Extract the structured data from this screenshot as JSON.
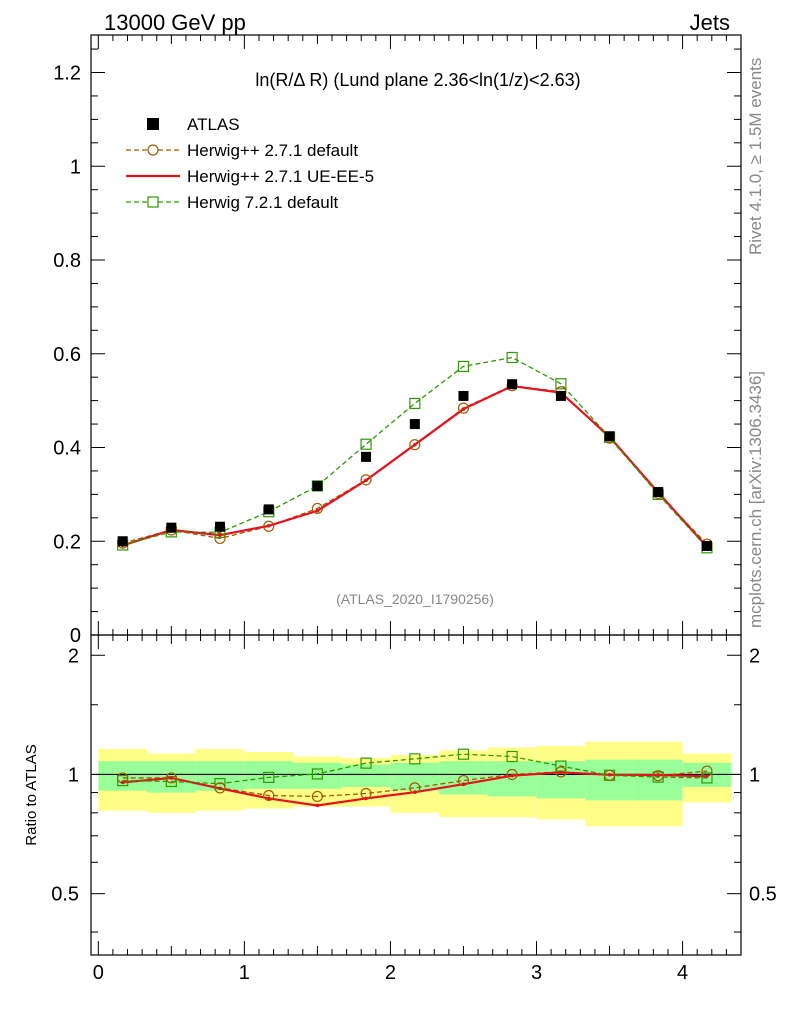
{
  "header": {
    "left": "13000 GeV pp",
    "right": "Jets"
  },
  "side": {
    "upper": "Rivet 4.1.0, ≥ 1.5M events",
    "lower": "mcplots.cern.ch [arXiv:1306.3436]"
  },
  "colors": {
    "atlas": "#000000",
    "herwig_def": "#a35a00",
    "herwig_ue": "#e8101e",
    "herwig72": "#2e9a00",
    "band_outer": "#ffff88",
    "band_inner": "#99ff99"
  },
  "chart_data": [
    {
      "type": "scatter",
      "title": "ln(R/Δ R) (Lund plane 2.36<ln(1/z)<2.63)",
      "watermark": "(ATLAS_2020_I1790256)",
      "xlabel": "",
      "ylabel": "",
      "xlim": [
        -0.05,
        4.4
      ],
      "ylim": [
        0,
        1.28
      ],
      "yticks": [
        0,
        0.2,
        0.4,
        0.6,
        0.8,
        1,
        1.2
      ],
      "ytick_labels": [
        "0",
        "0.2",
        "0.4",
        "0.6",
        "0.8",
        "1",
        "1.2"
      ],
      "x": [
        0.167,
        0.5,
        0.833,
        1.167,
        1.5,
        1.833,
        2.167,
        2.5,
        2.833,
        3.167,
        3.5,
        3.833,
        4.167
      ],
      "series": [
        {
          "name": "ATLAS",
          "marker": "square",
          "values": [
            0.2,
            0.229,
            0.231,
            0.268,
            0.318,
            0.38,
            0.45,
            0.51,
            0.535,
            0.51,
            0.424,
            0.305,
            0.19
          ]
        },
        {
          "name": "Herwig++ 2.7.1 default",
          "marker": "circle",
          "dash": true,
          "values": [
            0.196,
            0.224,
            0.206,
            0.232,
            0.27,
            0.331,
            0.406,
            0.484,
            0.532,
            0.519,
            0.42,
            0.302,
            0.194
          ]
        },
        {
          "name": "Herwig++ 2.7.1 UE-EE-5",
          "marker": "none",
          "dash": false,
          "values": [
            0.191,
            0.224,
            0.213,
            0.233,
            0.265,
            0.33,
            0.406,
            0.482,
            0.531,
            0.517,
            0.423,
            0.304,
            0.188
          ]
        },
        {
          "name": "Herwig 7.2.1 default",
          "marker": "square-open",
          "dash": true,
          "values": [
            0.192,
            0.22,
            0.219,
            0.263,
            0.318,
            0.407,
            0.494,
            0.573,
            0.592,
            0.536,
            0.422,
            0.3,
            0.186
          ]
        }
      ]
    },
    {
      "type": "scatter",
      "title": "",
      "xlabel": "",
      "ylabel": "Ratio to ATLAS",
      "xlim": [
        -0.05,
        4.4
      ],
      "ylim": [
        0.35,
        2.25
      ],
      "yticks": [
        0.5,
        1,
        2
      ],
      "ytick_labels": [
        "0.5",
        "1",
        "2"
      ],
      "xticks": [
        0,
        1,
        2,
        3,
        4
      ],
      "xtick_labels": [
        "0",
        "1",
        "2",
        "3",
        "4"
      ],
      "x": [
        0.167,
        0.5,
        0.833,
        1.167,
        1.5,
        1.833,
        2.167,
        2.5,
        2.833,
        3.167,
        3.5,
        3.833,
        4.167
      ],
      "bands": {
        "outer": [
          [
            0.81,
            1.16
          ],
          [
            0.8,
            1.13
          ],
          [
            0.81,
            1.16
          ],
          [
            0.82,
            1.14
          ],
          [
            0.83,
            1.11
          ],
          [
            0.83,
            1.1
          ],
          [
            0.8,
            1.12
          ],
          [
            0.78,
            1.15
          ],
          [
            0.78,
            1.17
          ],
          [
            0.77,
            1.18
          ],
          [
            0.74,
            1.21
          ],
          [
            0.74,
            1.21
          ],
          [
            0.85,
            1.13
          ]
        ],
        "inner": [
          [
            0.91,
            1.08
          ],
          [
            0.9,
            1.08
          ],
          [
            0.91,
            1.08
          ],
          [
            0.92,
            1.08
          ],
          [
            0.92,
            1.07
          ],
          [
            0.93,
            1.06
          ],
          [
            0.91,
            1.07
          ],
          [
            0.89,
            1.08
          ],
          [
            0.88,
            1.08
          ],
          [
            0.87,
            1.08
          ],
          [
            0.86,
            1.09
          ],
          [
            0.86,
            1.09
          ],
          [
            0.93,
            1.07
          ]
        ]
      },
      "series": [
        {
          "name": "Herwig++ 2.7.1 default",
          "values": [
            0.98,
            0.98,
            0.925,
            0.885,
            0.88,
            0.895,
            0.925,
            0.965,
            1.0,
            1.015,
            0.995,
            0.993,
            1.02
          ]
        },
        {
          "name": "Herwig++ 2.7.1 UE-EE-5",
          "values": [
            0.955,
            0.98,
            0.922,
            0.87,
            0.835,
            0.87,
            0.902,
            0.945,
            0.993,
            1.012,
            0.998,
            0.997,
            0.99
          ]
        },
        {
          "name": "Herwig 7.2.1 default",
          "values": [
            0.965,
            0.96,
            0.948,
            0.983,
            1.003,
            1.068,
            1.095,
            1.125,
            1.11,
            1.05,
            0.995,
            0.985,
            0.98
          ]
        }
      ]
    }
  ]
}
